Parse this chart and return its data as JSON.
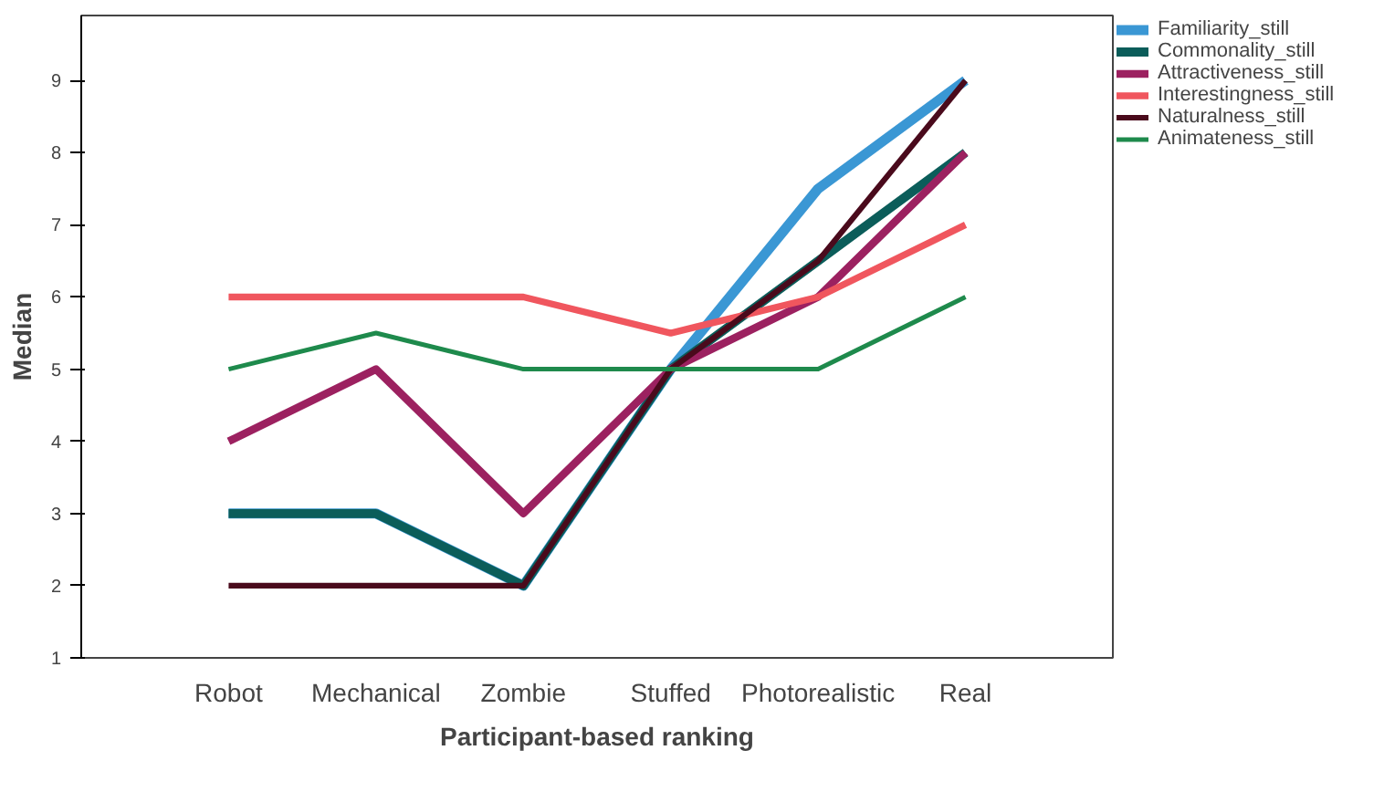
{
  "chart_data": {
    "type": "line",
    "xlabel": "Participant-based ranking",
    "ylabel": "Median",
    "categories": [
      "Robot",
      "Mechanical",
      "Zombie",
      "Stuffed",
      "Photorealistic",
      "Real"
    ],
    "ylim": [
      1,
      9.9
    ],
    "yticks": [
      1,
      2,
      3,
      4,
      5,
      6,
      7,
      8,
      9
    ],
    "grid": false,
    "legend": "top right",
    "marker": "none",
    "line_style": "solid",
    "series": [
      {
        "name": "Familiarity_still",
        "color": "#3a97d4",
        "values": [
          3,
          3,
          2,
          5,
          7.5,
          9
        ]
      },
      {
        "name": "Commonality_still",
        "color": "#0b5d5a",
        "values": [
          3,
          3,
          2,
          5,
          6.5,
          8
        ]
      },
      {
        "name": "Attractiveness_still",
        "color": "#9c2160",
        "values": [
          4,
          5,
          3,
          5,
          6,
          8
        ]
      },
      {
        "name": "Interestingness_still",
        "color": "#f0565e",
        "values": [
          6,
          6,
          6,
          5.5,
          6,
          7
        ]
      },
      {
        "name": "Naturalness_still",
        "color": "#4a0a1c",
        "values": [
          2,
          2,
          2,
          5,
          6.5,
          9
        ]
      },
      {
        "name": "Animateness_still",
        "color": "#1e8a4c",
        "values": [
          5,
          5.5,
          5,
          5,
          5,
          6
        ]
      }
    ]
  }
}
